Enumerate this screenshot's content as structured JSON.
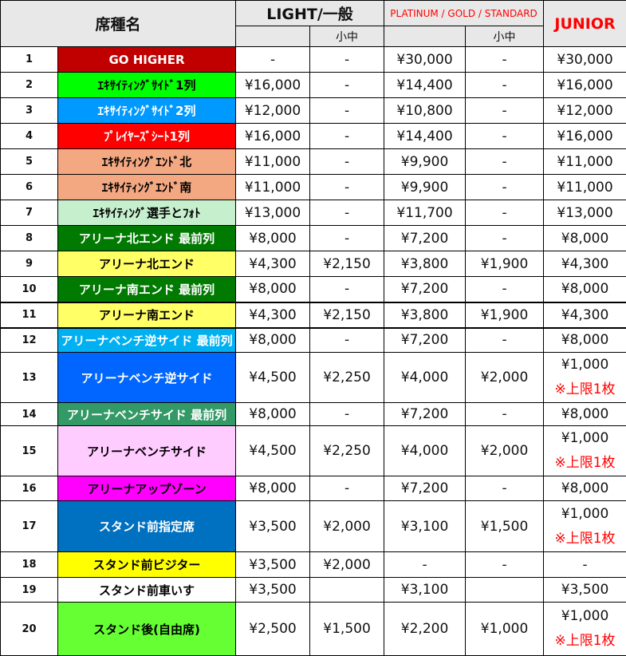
{
  "header": {
    "seat_name": "席種名",
    "light": "LIGHT/一般",
    "platinum": "PLATINUM / GOLD / STANDARD",
    "junior": "JUNIOR",
    "sub_child": "小中"
  },
  "limit_note": "※上限1枚",
  "rows": [
    {
      "no": "1",
      "name": "GO HIGHER",
      "bg": "#c00000",
      "fg": "#ffffff",
      "light": "-",
      "light_child": "-",
      "plat": "¥30,000",
      "plat_child": "-",
      "junior": "¥30,000",
      "h": 32
    },
    {
      "no": "2",
      "name": "ｴｷｻｲﾃｨﾝｸﾞｻｲﾄﾞ1列",
      "bg": "#00ff00",
      "fg": "#000000",
      "light": "¥16,000",
      "light_child": "-",
      "plat": "¥14,400",
      "plat_child": "-",
      "junior": "¥16,000",
      "h": 32
    },
    {
      "no": "3",
      "name": "ｴｷｻｲﾃｨﾝｸﾞｻｲﾄﾞ2列",
      "bg": "#0099ff",
      "fg": "#ffffff",
      "light": "¥12,000",
      "light_child": "-",
      "plat": "¥10,800",
      "plat_child": "-",
      "junior": "¥12,000",
      "h": 32
    },
    {
      "no": "4",
      "name": "ﾌﾟﾚｲﾔｰｽﾞｼｰﾄ1列",
      "bg": "#ff0000",
      "fg": "#ffffff",
      "light": "¥16,000",
      "light_child": "-",
      "plat": "¥14,400",
      "plat_child": "-",
      "junior": "¥16,000",
      "h": 32
    },
    {
      "no": "5",
      "name": "ｴｷｻｲﾃｨﾝｸﾞｴﾝﾄﾞ北",
      "bg": "#f4a882",
      "fg": "#000000",
      "light": "¥11,000",
      "light_child": "-",
      "plat": "¥9,900",
      "plat_child": "-",
      "junior": "¥11,000",
      "h": 32
    },
    {
      "no": "6",
      "name": "ｴｷｻｲﾃｨﾝｸﾞｴﾝﾄﾞ南",
      "bg": "#f4a882",
      "fg": "#000000",
      "light": "¥11,000",
      "light_child": "-",
      "plat": "¥9,900",
      "plat_child": "-",
      "junior": "¥11,000",
      "h": 32
    },
    {
      "no": "7",
      "name": "ｴｷｻｲﾃｨﾝｸﾞ選手とﾌｫﾄ",
      "bg": "#c6efce",
      "fg": "#000000",
      "light": "¥13,000",
      "light_child": "-",
      "plat": "¥11,700",
      "plat_child": "-",
      "junior": "¥13,000",
      "h": 32
    },
    {
      "no": "8",
      "name": "アリーナ北エンド 最前列",
      "bg": "#007a00",
      "fg": "#ffffff",
      "light": "¥8,000",
      "light_child": "-",
      "plat": "¥7,200",
      "plat_child": "-",
      "junior": "¥8,000",
      "h": 32
    },
    {
      "no": "9",
      "name": "アリーナ北エンド",
      "bg": "#ffff66",
      "fg": "#000000",
      "light": "¥4,300",
      "light_child": "¥2,150",
      "plat": "¥3,800",
      "plat_child": "¥1,900",
      "junior": "¥4,300",
      "h": 32
    },
    {
      "no": "10",
      "name": "アリーナ南エンド 最前列",
      "bg": "#007a00",
      "fg": "#ffffff",
      "light": "¥8,000",
      "light_child": "-",
      "plat": "¥7,200",
      "plat_child": "-",
      "junior": "¥8,000",
      "h": 32
    },
    {
      "no": "11",
      "name": "アリーナ南エンド",
      "bg": "#ffff66",
      "fg": "#000000",
      "light": "¥4,300",
      "light_child": "¥2,150",
      "plat": "¥3,800",
      "plat_child": "¥1,900",
      "junior": "¥4,300",
      "h": 32
    },
    {
      "no": "12",
      "name": "アリーナベンチ逆サイド 最前列",
      "bg": "#00b0f0",
      "fg": "#ffffff",
      "light": "¥8,000",
      "light_child": "-",
      "plat": "¥7,200",
      "plat_child": "-",
      "junior": "¥8,000",
      "h": 31
    },
    {
      "no": "13",
      "name": "アリーナベンチ逆サイド",
      "bg": "#0066ff",
      "fg": "#ffffff",
      "light": "¥4,500",
      "light_child": "¥2,250",
      "plat": "¥4,000",
      "plat_child": "¥2,000",
      "junior": "¥1,000",
      "limit": true,
      "h": 60
    },
    {
      "no": "14",
      "name": "アリーナベンチサイド 最前列",
      "bg": "#339966",
      "fg": "#ffffff",
      "light": "¥8,000",
      "light_child": "-",
      "plat": "¥7,200",
      "plat_child": "-",
      "junior": "¥8,000",
      "h": 29
    },
    {
      "no": "15",
      "name": "アリーナベンチサイド",
      "bg": "#ffccff",
      "fg": "#000000",
      "light": "¥4,500",
      "light_child": "¥2,250",
      "plat": "¥4,000",
      "plat_child": "¥2,000",
      "junior": "¥1,000",
      "limit": true,
      "h": 63
    },
    {
      "no": "16",
      "name": "アリーナアップゾーン",
      "bg": "#ff00ff",
      "fg": "#000000",
      "light": "¥8,000",
      "light_child": "-",
      "plat": "¥7,200",
      "plat_child": "-",
      "junior": "¥8,000",
      "h": 31
    },
    {
      "no": "17",
      "name": "スタンド前指定席",
      "bg": "#0070c0",
      "fg": "#ffffff",
      "light": "¥3,500",
      "light_child": "¥2,000",
      "plat": "¥3,100",
      "plat_child": "¥1,500",
      "junior": "¥1,000",
      "limit": true,
      "h": 64
    },
    {
      "no": "18",
      "name": "スタンド前ビジター",
      "bg": "#ffff00",
      "fg": "#000000",
      "light": "¥3,500",
      "light_child": "¥2,000",
      "plat": "-",
      "plat_child": "-",
      "junior": "-",
      "h": 32
    },
    {
      "no": "19",
      "name": "スタンド前車いす",
      "bg": "#ffffff",
      "fg": "#000000",
      "light": "¥3,500",
      "light_child": "",
      "plat": "¥3,100",
      "plat_child": "",
      "junior": "¥3,500",
      "h": 31
    },
    {
      "no": "20",
      "name": "スタンド後(自由席)",
      "bg": "#66ff33",
      "fg": "#000000",
      "light": "¥2,500",
      "light_child": "¥1,500",
      "plat": "¥2,200",
      "plat_child": "¥1,000",
      "junior": "¥1,000",
      "limit": true,
      "h": 67
    }
  ]
}
